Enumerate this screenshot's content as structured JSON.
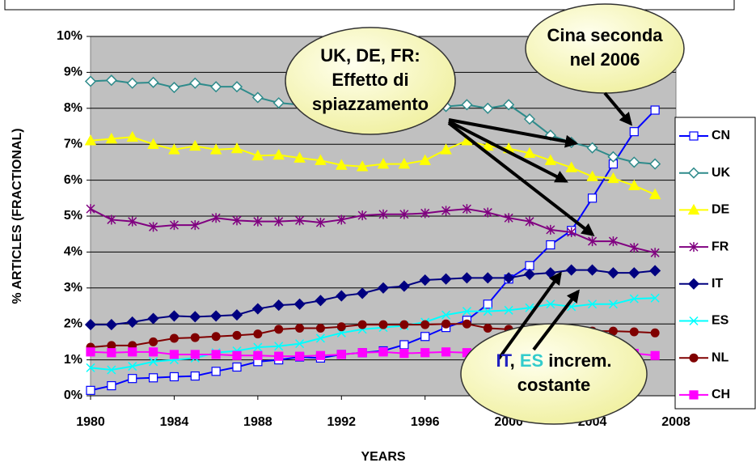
{
  "chart_data": {
    "type": "line",
    "x": [
      1980,
      1981,
      1982,
      1983,
      1984,
      1985,
      1986,
      1987,
      1988,
      1989,
      1990,
      1991,
      1992,
      1993,
      1994,
      1995,
      1996,
      1997,
      1998,
      1999,
      2000,
      2001,
      2002,
      2003,
      2004,
      2005,
      2006,
      2007
    ],
    "xlabel": "YEARS",
    "ylabel": "% ARTICLES (FRACTIONAL)",
    "xlim": [
      1980,
      2008
    ],
    "xticks": [
      1980,
      1984,
      1988,
      1992,
      1996,
      2000,
      2004,
      2008
    ],
    "ylim": [
      0,
      10
    ],
    "yticks": [
      {
        "value": 0,
        "label": "0%"
      },
      {
        "value": 1,
        "label": "1%"
      },
      {
        "value": 2,
        "label": "2%"
      },
      {
        "value": 3,
        "label": "3%"
      },
      {
        "value": 4,
        "label": "4%"
      },
      {
        "value": 5,
        "label": "5%"
      },
      {
        "value": 6,
        "label": "6%"
      },
      {
        "value": 7,
        "label": "7%"
      },
      {
        "value": 8,
        "label": "8%"
      },
      {
        "value": 9,
        "label": "9%"
      },
      {
        "value": 10,
        "label": "10%"
      }
    ],
    "grid": true,
    "legend": "right",
    "series": [
      {
        "name": "CN",
        "color": "#0000ff",
        "marker": "square-open",
        "values": [
          0.15,
          0.28,
          0.48,
          0.5,
          0.53,
          0.55,
          0.68,
          0.8,
          0.95,
          1.0,
          1.08,
          1.05,
          1.15,
          1.2,
          1.25,
          1.42,
          1.65,
          1.9,
          2.1,
          2.55,
          3.25,
          3.62,
          4.2,
          4.6,
          5.5,
          6.45,
          7.35,
          7.95
        ]
      },
      {
        "name": "UK",
        "color": "#2e8b8b",
        "marker": "diamond-open",
        "values": [
          8.75,
          8.78,
          8.7,
          8.72,
          8.58,
          8.7,
          8.6,
          8.6,
          8.3,
          8.15,
          8.1,
          8.0,
          8.0,
          8.0,
          8.0,
          8.0,
          8.0,
          8.05,
          8.1,
          8.0,
          8.1,
          7.7,
          7.25,
          7.05,
          6.9,
          6.65,
          6.5,
          6.45
        ]
      },
      {
        "name": "DE",
        "color": "#ffff00",
        "marker": "triangle",
        "values": [
          7.1,
          7.15,
          7.2,
          7.0,
          6.85,
          6.95,
          6.85,
          6.88,
          6.68,
          6.7,
          6.62,
          6.55,
          6.42,
          6.38,
          6.45,
          6.45,
          6.55,
          6.85,
          7.1,
          6.95,
          6.88,
          6.75,
          6.55,
          6.35,
          6.1,
          6.05,
          5.85,
          5.6
        ]
      },
      {
        "name": "FR",
        "color": "#800080",
        "marker": "star",
        "values": [
          5.2,
          4.9,
          4.85,
          4.7,
          4.75,
          4.75,
          4.95,
          4.88,
          4.85,
          4.85,
          4.88,
          4.82,
          4.9,
          5.02,
          5.05,
          5.05,
          5.08,
          5.15,
          5.2,
          5.1,
          4.95,
          4.85,
          4.62,
          4.55,
          4.3,
          4.3,
          4.12,
          3.98
        ]
      },
      {
        "name": "IT",
        "color": "#000080",
        "marker": "diamond",
        "values": [
          1.98,
          1.98,
          2.05,
          2.15,
          2.22,
          2.2,
          2.22,
          2.25,
          2.42,
          2.52,
          2.55,
          2.65,
          2.78,
          2.85,
          3.0,
          3.05,
          3.22,
          3.25,
          3.28,
          3.28,
          3.28,
          3.38,
          3.42,
          3.5,
          3.5,
          3.42,
          3.42,
          3.48
        ]
      },
      {
        "name": "ES",
        "color": "#00ffff",
        "marker": "x",
        "values": [
          0.78,
          0.72,
          0.82,
          0.95,
          1.0,
          1.05,
          1.2,
          1.25,
          1.35,
          1.38,
          1.45,
          1.6,
          1.75,
          1.85,
          1.9,
          1.95,
          2.05,
          2.25,
          2.35,
          2.35,
          2.38,
          2.45,
          2.55,
          2.48,
          2.55,
          2.55,
          2.7,
          2.72
        ]
      },
      {
        "name": "NL",
        "color": "#800000",
        "marker": "circle",
        "values": [
          1.35,
          1.4,
          1.4,
          1.5,
          1.6,
          1.62,
          1.65,
          1.68,
          1.72,
          1.85,
          1.88,
          1.88,
          1.92,
          1.98,
          1.98,
          1.98,
          1.98,
          2.0,
          2.0,
          1.88,
          1.85,
          1.82,
          1.8,
          1.78,
          1.8,
          1.8,
          1.78,
          1.75
        ]
      },
      {
        "name": "CH",
        "color": "#ff00ff",
        "marker": "square",
        "values": [
          1.22,
          1.2,
          1.22,
          1.22,
          1.15,
          1.15,
          1.15,
          1.12,
          1.12,
          1.1,
          1.1,
          1.12,
          1.15,
          1.2,
          1.22,
          1.18,
          1.2,
          1.22,
          1.2,
          1.2,
          1.2,
          1.2,
          1.2,
          1.2,
          1.2,
          1.2,
          1.18,
          1.12
        ]
      }
    ],
    "annotations": [
      {
        "lines": [
          [
            {
              "text": "UK, DE, FR:"
            }
          ],
          [
            {
              "text": "Effetto di"
            }
          ],
          [
            {
              "text": "spiazzamento"
            }
          ]
        ]
      },
      {
        "lines": [
          [
            {
              "text": "Cina seconda"
            }
          ],
          [
            {
              "text": "nel 2006"
            }
          ]
        ]
      },
      {
        "lines": [
          [
            {
              "text": "IT",
              "color": "#2020c0"
            },
            {
              "text": ", "
            },
            {
              "text": "ES",
              "color": "#33cccc"
            },
            {
              "text": " increm."
            }
          ],
          [
            {
              "text": "costante"
            }
          ]
        ]
      }
    ]
  }
}
